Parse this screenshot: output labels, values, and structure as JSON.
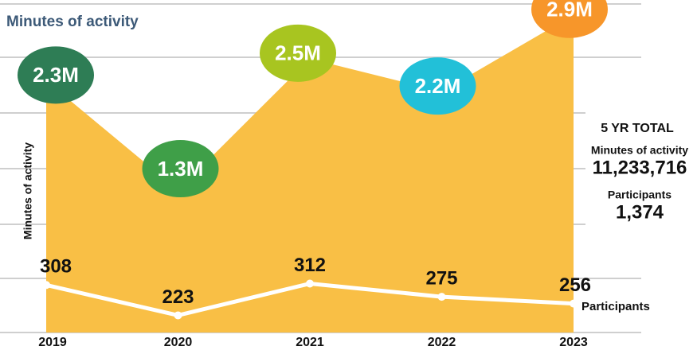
{
  "chart_data": {
    "type": "area",
    "title": "Minutes of activity",
    "categories": [
      "2019",
      "2020",
      "2021",
      "2022",
      "2023"
    ],
    "series": [
      {
        "name": "Minutes of activity",
        "color": "#f9bf45",
        "values": [
          2.3,
          1.3,
          2.5,
          2.2,
          2.9
        ],
        "value_labels": [
          "2.3M",
          "1.3M",
          "2.5M",
          "2.2M",
          "2.9M"
        ],
        "label_colors": [
          "#2e7d55",
          "#3f9f48",
          "#a8c520",
          "#22c0d8",
          "#f7962a"
        ]
      },
      {
        "name": "Participants",
        "color": "#ffffff",
        "axis": "y2",
        "values": [
          308,
          223,
          312,
          275,
          256
        ]
      }
    ],
    "ylim": [
      0,
      3
    ],
    "y2lim": [
      175,
      1095
    ],
    "grid": true,
    "summary": {
      "heading": "5 YR TOTAL",
      "items": [
        {
          "label": "Minutes of activity",
          "value": "11,233,716"
        },
        {
          "label": "Participants",
          "value": "1,374"
        }
      ]
    }
  }
}
